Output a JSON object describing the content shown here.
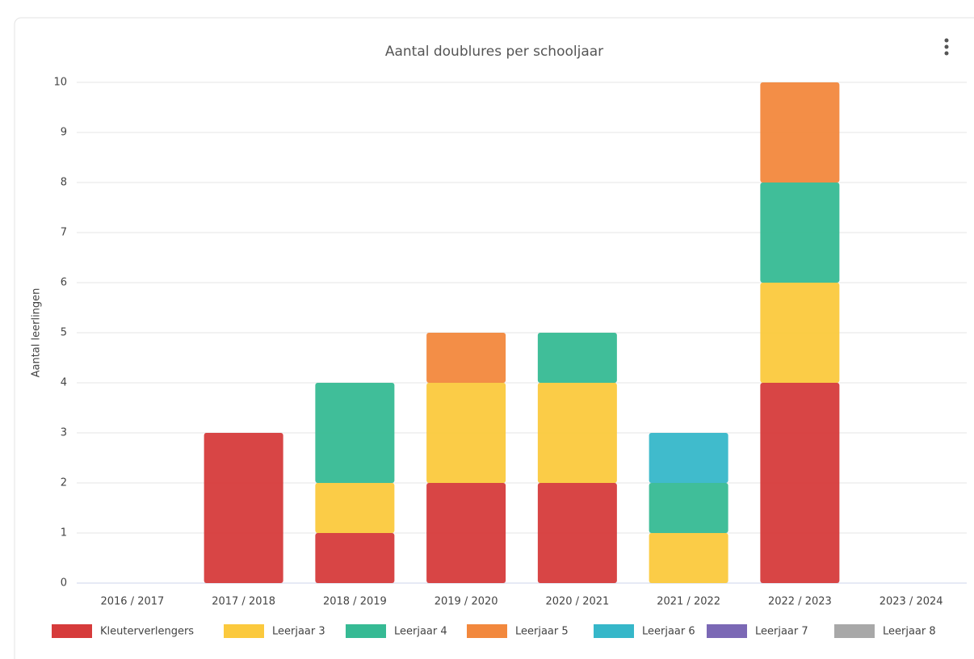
{
  "chart_data": {
    "type": "stacked-bar",
    "title": "Aantal doublures per schooljaar",
    "y_label": "Aantal leerlingen",
    "categories": [
      "2016 / 2017",
      "2017 / 2018",
      "2018 / 2019",
      "2019 / 2020",
      "2020 / 2021",
      "2021 / 2022",
      "2022 / 2023",
      "2023 / 2024"
    ],
    "series": [
      {
        "name": "Kleuterverlengers",
        "color": "#d63b3b",
        "values": [
          0,
          3,
          1,
          2,
          2,
          0,
          4,
          0
        ]
      },
      {
        "name": "Leerjaar 3",
        "color": "#fbc93d",
        "values": [
          0,
          0,
          1,
          2,
          2,
          1,
          2,
          0
        ]
      },
      {
        "name": "Leerjaar 4",
        "color": "#36ba94",
        "values": [
          0,
          0,
          2,
          0,
          1,
          1,
          2,
          0
        ]
      },
      {
        "name": "Leerjaar 5",
        "color": "#f2883d",
        "values": [
          0,
          0,
          0,
          1,
          0,
          0,
          2,
          0
        ]
      },
      {
        "name": "Leerjaar 6",
        "color": "#36b7c9",
        "values": [
          0,
          0,
          0,
          0,
          0,
          1,
          0,
          0
        ]
      },
      {
        "name": "Leerjaar 7",
        "color": "#7b68b5",
        "values": [
          0,
          0,
          0,
          0,
          0,
          0,
          0,
          0
        ]
      },
      {
        "name": "Leerjaar 8",
        "color": "#a8a8a8",
        "values": [
          0,
          0,
          0,
          0,
          0,
          0,
          0,
          0
        ]
      }
    ],
    "ylim": [
      0,
      10
    ],
    "yticks": [
      0,
      1,
      2,
      3,
      4,
      5,
      6,
      7,
      8,
      9,
      10
    ],
    "grid": true,
    "legend": "bottom"
  }
}
